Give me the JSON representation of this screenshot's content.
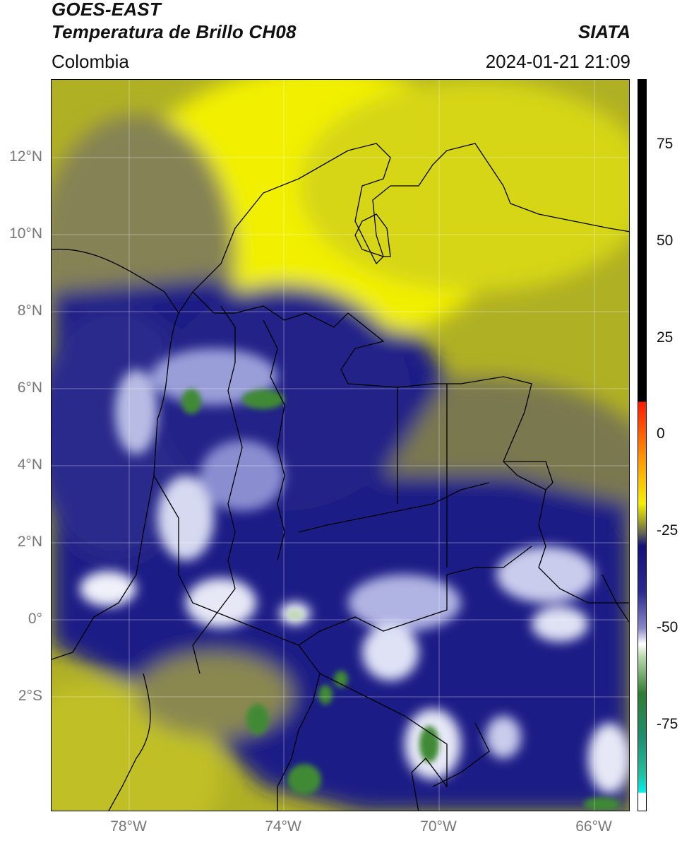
{
  "header": {
    "title_line1": "GOES-EAST",
    "title_line2": "Temperatura de Brillo CH08",
    "brand": "SIATA",
    "region": "Colombia",
    "datetime": "2024-01-21 21:09"
  },
  "map": {
    "lat_ticks": [
      "12°N",
      "10°N",
      "8°N",
      "6°N",
      "4°N",
      "2°N",
      "0°",
      "2°S"
    ],
    "lon_ticks": [
      "78°W",
      "74°W",
      "70°W",
      "66°W"
    ],
    "colors": {
      "yellow_bright": "#f2f000",
      "yellow_olive": "#b8b820",
      "olive_grey": "#6b6b4a",
      "navy": "#1a1a86",
      "cloud_white": "#e8ecf8",
      "cold_green": "#3f8a35"
    }
  },
  "colorbar": {
    "ticks": [
      "75",
      "50",
      "25",
      "0",
      "-25",
      "-50",
      "-75"
    ],
    "colors": {
      "black": "#000000",
      "red": "#ff1a00",
      "orange": "#ff9a00",
      "yellow": "#f5f000",
      "navy": "#12127a",
      "white": "#ffffff",
      "green": "#2e7d32",
      "teal": "#20c0a0",
      "cyan": "#00f0f0"
    }
  }
}
